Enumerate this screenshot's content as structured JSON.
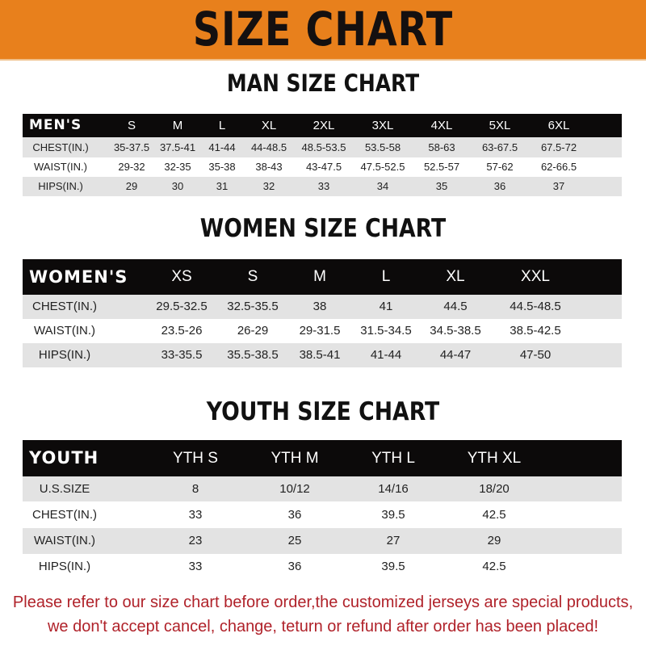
{
  "title": "SIZE CHART",
  "colors": {
    "banner": "#e8801c",
    "header_row": "#0c0a0a",
    "stripe": "#e3e3e3",
    "note": "#b0222a"
  },
  "men": {
    "heading": "MAN SIZE CHART",
    "columns": [
      "MEN'S",
      "S",
      "M",
      "L",
      "XL",
      "2XL",
      "3XL",
      "4XL",
      "5XL",
      "6XL"
    ],
    "rows": [
      [
        "CHEST(IN.)",
        "35-37.5",
        "37.5-41",
        "41-44",
        "44-48.5",
        "48.5-53.5",
        "53.5-58",
        "58-63",
        "63-67.5",
        "67.5-72"
      ],
      [
        "WAIST(IN.)",
        "29-32",
        "32-35",
        "35-38",
        "38-43",
        "43-47.5",
        "47.5-52.5",
        "52.5-57",
        "57-62",
        "62-66.5"
      ],
      [
        "HIPS(IN.)",
        "29",
        "30",
        "31",
        "32",
        "33",
        "34",
        "35",
        "36",
        "37"
      ]
    ]
  },
  "women": {
    "heading": "WOMEN SIZE CHART",
    "columns": [
      "WOMEN'S",
      "XS",
      "S",
      "M",
      "L",
      "XL",
      "XXL"
    ],
    "rows": [
      [
        "CHEST(IN.)",
        "29.5-32.5",
        "32.5-35.5",
        "38",
        "41",
        "44.5",
        "44.5-48.5"
      ],
      [
        "WAIST(IN.)",
        "23.5-26",
        "26-29",
        "29-31.5",
        "31.5-34.5",
        "34.5-38.5",
        "38.5-42.5"
      ],
      [
        "HIPS(IN.)",
        "33-35.5",
        "35.5-38.5",
        "38.5-41",
        "41-44",
        "44-47",
        "47-50"
      ]
    ]
  },
  "youth": {
    "heading": "YOUTH SIZE CHART",
    "columns": [
      "YOUTH",
      "YTH S",
      "YTH M",
      "YTH L",
      "YTH XL"
    ],
    "rows": [
      [
        "U.S.SIZE",
        "8",
        "10/12",
        "14/16",
        "18/20"
      ],
      [
        "CHEST(IN.)",
        "33",
        "36",
        "39.5",
        "42.5"
      ],
      [
        "WAIST(IN.)",
        "23",
        "25",
        "27",
        "29"
      ],
      [
        "HIPS(IN.)",
        "33",
        "36",
        "39.5",
        "42.5"
      ]
    ]
  },
  "note": {
    "line1": "Please refer to our size chart before order,the customized jerseys are special products,",
    "line2": "we don't accept cancel, change, teturn or refund after order has been placed!"
  }
}
